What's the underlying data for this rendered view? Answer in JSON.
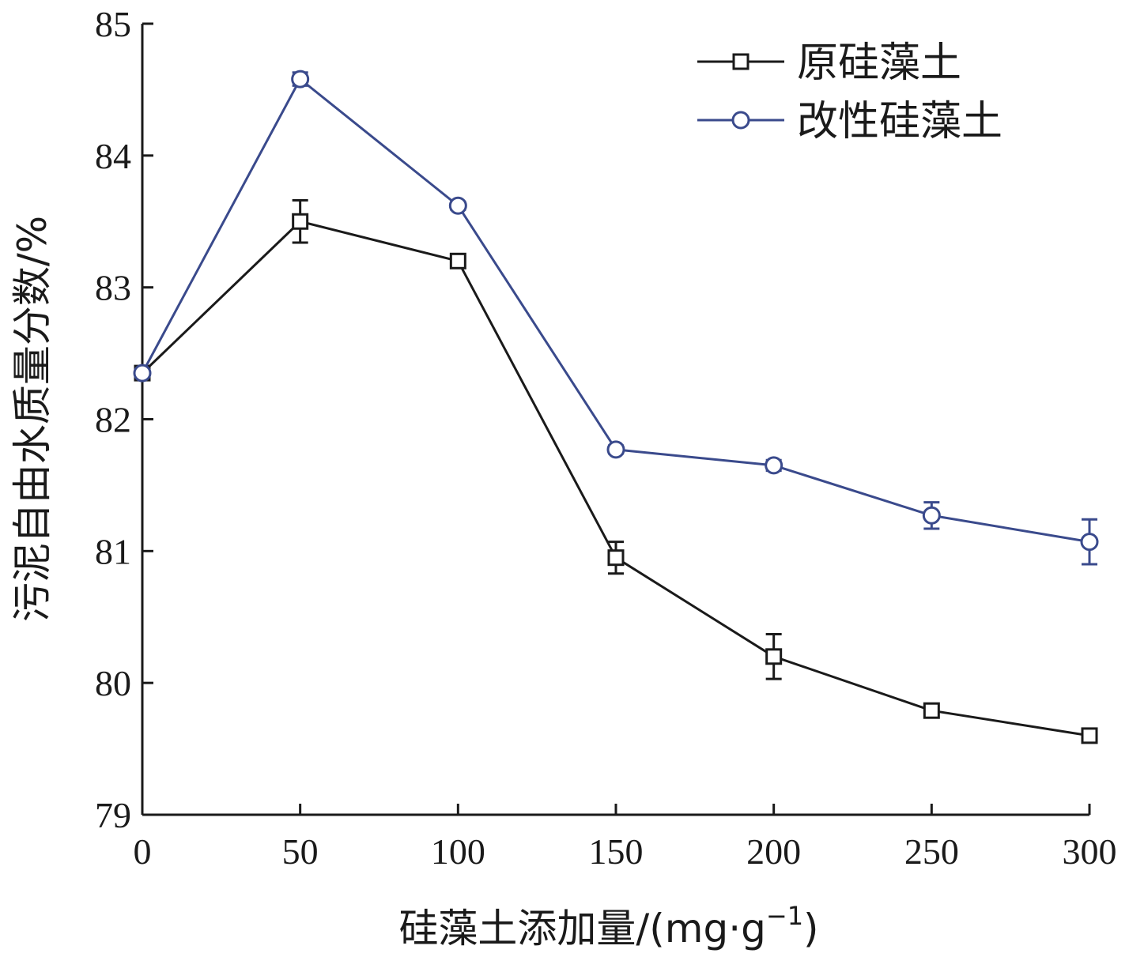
{
  "chart_data": {
    "type": "line",
    "xlabel_main": "硅藻土添加量/(mg·g",
    "xlabel_sup": "−1",
    "xlabel_end": ")",
    "ylabel": "污泥自由水质量分数/%",
    "xlim": [
      0,
      300
    ],
    "ylim": [
      79,
      85
    ],
    "x_ticks": [
      "0",
      "50",
      "100",
      "150",
      "200",
      "250",
      "300"
    ],
    "y_ticks": [
      "79",
      "80",
      "81",
      "82",
      "83",
      "84",
      "85"
    ],
    "grid": false,
    "legend_position": "top-right",
    "x": [
      0,
      50,
      100,
      150,
      200,
      250,
      300
    ],
    "series": [
      {
        "name": "原硅藻土",
        "color": "#1a1a1a",
        "marker": "square",
        "values": [
          82.35,
          83.5,
          83.2,
          80.95,
          80.2,
          79.79,
          79.6
        ],
        "errors": [
          0.03,
          0.16,
          0.03,
          0.12,
          0.17,
          0.05,
          0.04
        ]
      },
      {
        "name": "改性硅藻土",
        "color": "#3a4a8c",
        "marker": "circle",
        "values": [
          82.35,
          84.58,
          83.62,
          81.77,
          81.65,
          81.27,
          81.07
        ],
        "errors": [
          0.03,
          0.05,
          0.03,
          0.03,
          0.04,
          0.1,
          0.17
        ]
      }
    ]
  }
}
